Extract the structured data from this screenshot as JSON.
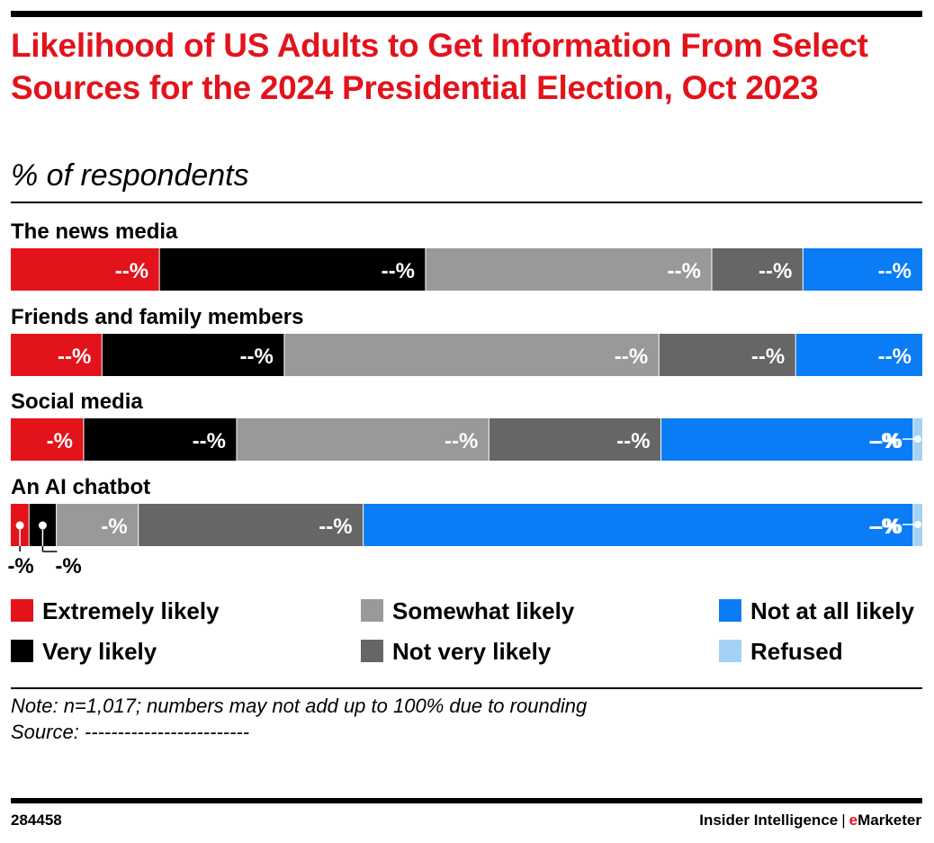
{
  "title": "Likelihood of US Adults to Get Information From Select Sources for the 2024 Presidential Election, Oct 2023",
  "subtitle": "% of respondents",
  "colors": {
    "title": "#e3131b",
    "extremely_likely": "#e3131b",
    "very_likely": "#000000",
    "somewhat_likely": "#999999",
    "not_very_likely": "#666666",
    "not_at_all_likely": "#0a7cf5",
    "refused": "#a3d2f5"
  },
  "chart_data": {
    "type": "bar",
    "orientation": "horizontal",
    "stacked": true,
    "normalized": true,
    "categories": [
      "The news media",
      "Friends and family members",
      "Social media",
      "An AI chatbot"
    ],
    "series": [
      {
        "name": "Extremely likely",
        "values": [
          16.3,
          10.0,
          8.0,
          2.0
        ],
        "labels": [
          "--%",
          "--%",
          "-%",
          "-%"
        ]
      },
      {
        "name": "Very likely",
        "values": [
          29.2,
          20.0,
          16.8,
          3.0
        ],
        "labels": [
          "--%",
          "--%",
          "--%",
          "-%"
        ]
      },
      {
        "name": "Somewhat likely",
        "values": [
          31.4,
          41.1,
          27.7,
          9.0
        ],
        "labels": [
          "--%",
          "--%",
          "--%",
          "-%"
        ]
      },
      {
        "name": "Not very likely",
        "values": [
          10.0,
          15.0,
          18.9,
          24.7
        ],
        "labels": [
          "--%",
          "--%",
          "--%",
          "--%"
        ]
      },
      {
        "name": "Not at all likely",
        "values": [
          13.1,
          13.9,
          27.7,
          60.4
        ],
        "labels": [
          "--%",
          "--%",
          "--%",
          "--%"
        ]
      },
      {
        "name": "Refused",
        "values": [
          0,
          0,
          1.0,
          1.0
        ],
        "labels": [
          "",
          "",
          "-%",
          "-%"
        ]
      }
    ],
    "legend_position": "bottom"
  },
  "legend": [
    {
      "label": "Extremely likely",
      "color": "#e3131b"
    },
    {
      "label": "Very likely",
      "color": "#000000"
    },
    {
      "label": "Somewhat likely",
      "color": "#999999"
    },
    {
      "label": "Not very likely",
      "color": "#666666"
    },
    {
      "label": "Not at all likely",
      "color": "#0a7cf5"
    },
    {
      "label": "Refused",
      "color": "#a3d2f5"
    }
  ],
  "note": "Note: n=1,017; numbers may not add up to 100% due to rounding",
  "source": "Source: -------------------------",
  "footer": {
    "chart_id": "284458",
    "brand_left": "Insider Intelligence",
    "separator": "|",
    "brand_e": "e",
    "brand_right": "Marketer"
  }
}
